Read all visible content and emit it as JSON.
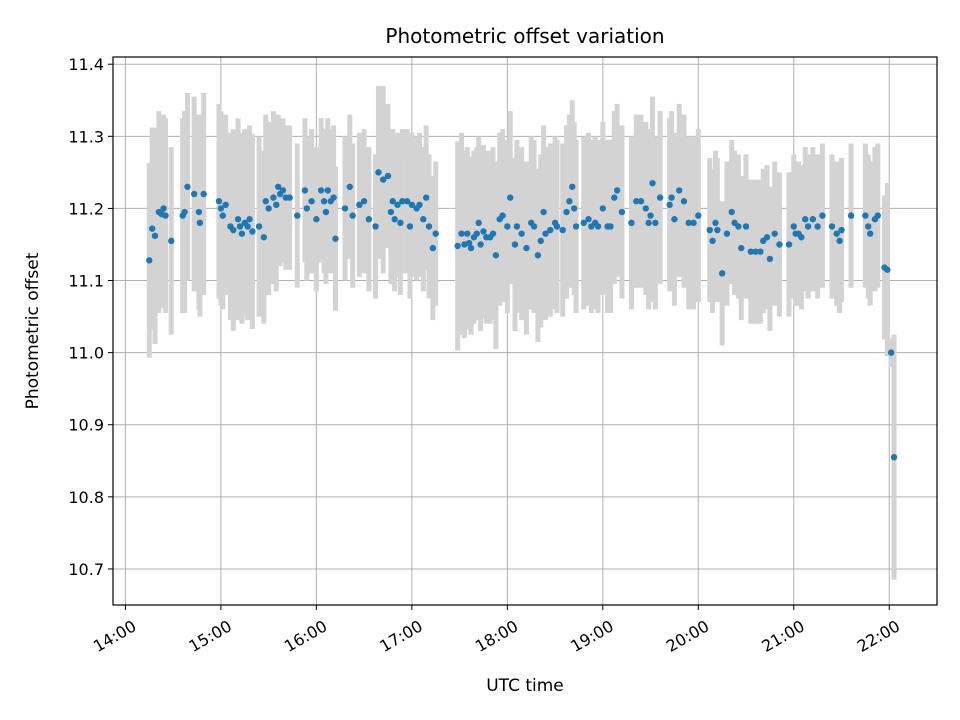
{
  "chart_data": {
    "type": "scatter",
    "title": "Photometric offset variation",
    "xlabel": "UTC time",
    "ylabel": "Photometric offset",
    "x_unit": "hours UTC",
    "xlim": [
      13.87,
      22.5
    ],
    "ylim": [
      10.65,
      11.41
    ],
    "x_ticks": [
      14,
      15,
      16,
      17,
      18,
      19,
      20,
      21,
      22
    ],
    "x_tick_labels": [
      "14:00",
      "15:00",
      "16:00",
      "17:00",
      "18:00",
      "19:00",
      "20:00",
      "21:00",
      "22:00"
    ],
    "y_ticks": [
      10.7,
      10.8,
      10.9,
      11.0,
      11.1,
      11.2,
      11.3,
      11.4
    ],
    "y_tick_labels": [
      "10.7",
      "10.8",
      "10.9",
      "11.0",
      "11.1",
      "11.2",
      "11.3",
      "11.4"
    ],
    "grid": true,
    "point_color": "#1f77b4",
    "errorbar_color": "#d3d3d3",
    "series": [
      {
        "values": [
          [
            14.25,
            11.128,
            0.135
          ],
          [
            14.28,
            11.172,
            0.14
          ],
          [
            14.31,
            11.162,
            0.15
          ],
          [
            14.35,
            11.195,
            0.14
          ],
          [
            14.38,
            11.192,
            0.13
          ],
          [
            14.4,
            11.2,
            0.13
          ],
          [
            14.42,
            11.19,
            0.135
          ],
          [
            14.48,
            11.155,
            0.13
          ],
          [
            14.6,
            11.19,
            0.135
          ],
          [
            14.62,
            11.195,
            0.14
          ],
          [
            14.65,
            11.23,
            0.13
          ],
          [
            14.72,
            11.22,
            0.135
          ],
          [
            14.77,
            11.195,
            0.135
          ],
          [
            14.78,
            11.18,
            0.13
          ],
          [
            14.82,
            11.22,
            0.14
          ],
          [
            14.98,
            11.21,
            0.135
          ],
          [
            15.0,
            11.2,
            0.135
          ],
          [
            15.02,
            11.19,
            0.13
          ],
          [
            15.05,
            11.205,
            0.125
          ],
          [
            15.1,
            11.175,
            0.13
          ],
          [
            15.13,
            11.17,
            0.14
          ],
          [
            15.18,
            11.185,
            0.14
          ],
          [
            15.2,
            11.175,
            0.13
          ],
          [
            15.22,
            11.165,
            0.125
          ],
          [
            15.25,
            11.18,
            0.13
          ],
          [
            15.28,
            11.175,
            0.13
          ],
          [
            15.3,
            11.185,
            0.13
          ],
          [
            15.33,
            11.168,
            0.135
          ],
          [
            15.4,
            11.175,
            0.125
          ],
          [
            15.45,
            11.16,
            0.12
          ],
          [
            15.47,
            11.21,
            0.12
          ],
          [
            15.5,
            11.2,
            0.12
          ],
          [
            15.55,
            11.215,
            0.12
          ],
          [
            15.58,
            11.205,
            0.12
          ],
          [
            15.6,
            11.23,
            0.1
          ],
          [
            15.62,
            11.22,
            0.1
          ],
          [
            15.65,
            11.225,
            0.1
          ],
          [
            15.68,
            11.215,
            0.1
          ],
          [
            15.72,
            11.215,
            0.1
          ],
          [
            15.8,
            11.19,
            0.1
          ],
          [
            15.88,
            11.225,
            0.1
          ],
          [
            15.9,
            11.2,
            0.1
          ],
          [
            15.95,
            11.21,
            0.1
          ],
          [
            16.0,
            11.185,
            0.1
          ],
          [
            16.05,
            11.225,
            0.1
          ],
          [
            16.08,
            11.21,
            0.1
          ],
          [
            16.1,
            11.195,
            0.1
          ],
          [
            16.12,
            11.225,
            0.1
          ],
          [
            16.15,
            11.21,
            0.1
          ],
          [
            16.18,
            11.215,
            0.1
          ],
          [
            16.2,
            11.158,
            0.1
          ],
          [
            16.3,
            11.2,
            0.1
          ],
          [
            16.35,
            11.23,
            0.1
          ],
          [
            16.38,
            11.19,
            0.1
          ],
          [
            16.45,
            11.205,
            0.1
          ],
          [
            16.5,
            11.21,
            0.1
          ],
          [
            16.55,
            11.185,
            0.1
          ],
          [
            16.62,
            11.175,
            0.1
          ],
          [
            16.65,
            11.25,
            0.12
          ],
          [
            16.7,
            11.24,
            0.13
          ],
          [
            16.75,
            11.245,
            0.1
          ],
          [
            16.78,
            11.195,
            0.1
          ],
          [
            16.8,
            11.21,
            0.1
          ],
          [
            16.82,
            11.185,
            0.1
          ],
          [
            16.85,
            11.205,
            0.1
          ],
          [
            16.88,
            11.18,
            0.1
          ],
          [
            16.9,
            11.21,
            0.1
          ],
          [
            16.95,
            11.21,
            0.1
          ],
          [
            16.98,
            11.175,
            0.1
          ],
          [
            17.0,
            11.205,
            0.1
          ],
          [
            17.05,
            11.2,
            0.1
          ],
          [
            17.08,
            11.205,
            0.1
          ],
          [
            17.12,
            11.185,
            0.1
          ],
          [
            17.15,
            11.215,
            0.1
          ],
          [
            17.18,
            11.175,
            0.1
          ],
          [
            17.22,
            11.145,
            0.1
          ],
          [
            17.25,
            11.165,
            0.1
          ],
          [
            17.48,
            11.148,
            0.145
          ],
          [
            17.52,
            11.165,
            0.14
          ],
          [
            17.55,
            11.15,
            0.13
          ],
          [
            17.58,
            11.165,
            0.12
          ],
          [
            17.6,
            11.152,
            0.12
          ],
          [
            17.62,
            11.145,
            0.12
          ],
          [
            17.65,
            11.16,
            0.12
          ],
          [
            17.68,
            11.165,
            0.12
          ],
          [
            17.7,
            11.18,
            0.12
          ],
          [
            17.72,
            11.15,
            0.12
          ],
          [
            17.75,
            11.168,
            0.12
          ],
          [
            17.78,
            11.16,
            0.12
          ],
          [
            17.82,
            11.16,
            0.12
          ],
          [
            17.85,
            11.165,
            0.12
          ],
          [
            17.88,
            11.135,
            0.13
          ],
          [
            17.92,
            11.185,
            0.12
          ],
          [
            17.95,
            11.19,
            0.12
          ],
          [
            18.0,
            11.175,
            0.12
          ],
          [
            18.03,
            11.215,
            0.12
          ],
          [
            18.08,
            11.15,
            0.12
          ],
          [
            18.1,
            11.175,
            0.12
          ],
          [
            18.15,
            11.165,
            0.12
          ],
          [
            18.2,
            11.145,
            0.12
          ],
          [
            18.25,
            11.18,
            0.12
          ],
          [
            18.28,
            11.175,
            0.12
          ],
          [
            18.32,
            11.135,
            0.12
          ],
          [
            18.35,
            11.155,
            0.12
          ],
          [
            18.38,
            11.195,
            0.12
          ],
          [
            18.4,
            11.165,
            0.12
          ],
          [
            18.45,
            11.17,
            0.12
          ],
          [
            18.5,
            11.18,
            0.12
          ],
          [
            18.52,
            11.175,
            0.12
          ],
          [
            18.58,
            11.17,
            0.12
          ],
          [
            18.62,
            11.195,
            0.12
          ],
          [
            18.65,
            11.21,
            0.12
          ],
          [
            18.68,
            11.23,
            0.12
          ],
          [
            18.7,
            11.2,
            0.12
          ],
          [
            18.72,
            11.175,
            0.12
          ],
          [
            18.8,
            11.18,
            0.12
          ],
          [
            18.85,
            11.185,
            0.12
          ],
          [
            18.88,
            11.175,
            0.12
          ],
          [
            18.92,
            11.18,
            0.12
          ],
          [
            18.95,
            11.175,
            0.12
          ],
          [
            19.0,
            11.2,
            0.12
          ],
          [
            19.05,
            11.175,
            0.12
          ],
          [
            19.08,
            11.175,
            0.12
          ],
          [
            19.12,
            11.215,
            0.12
          ],
          [
            19.15,
            11.225,
            0.12
          ],
          [
            19.2,
            11.195,
            0.12
          ],
          [
            19.3,
            11.18,
            0.12
          ],
          [
            19.35,
            11.21,
            0.12
          ],
          [
            19.4,
            11.21,
            0.12
          ],
          [
            19.45,
            11.2,
            0.12
          ],
          [
            19.48,
            11.18,
            0.12
          ],
          [
            19.5,
            11.19,
            0.12
          ],
          [
            19.52,
            11.235,
            0.12
          ],
          [
            19.55,
            11.18,
            0.12
          ],
          [
            19.6,
            11.215,
            0.12
          ],
          [
            19.7,
            11.205,
            0.12
          ],
          [
            19.72,
            11.215,
            0.12
          ],
          [
            19.75,
            11.185,
            0.12
          ],
          [
            19.8,
            11.225,
            0.12
          ],
          [
            19.85,
            11.21,
            0.12
          ],
          [
            19.9,
            11.18,
            0.12
          ],
          [
            19.95,
            11.18,
            0.12
          ],
          [
            20.0,
            11.19,
            0.12
          ],
          [
            20.12,
            11.17,
            0.1
          ],
          [
            20.15,
            11.155,
            0.1
          ],
          [
            20.18,
            11.18,
            0.1
          ],
          [
            20.2,
            11.17,
            0.1
          ],
          [
            20.25,
            11.11,
            0.1
          ],
          [
            20.3,
            11.165,
            0.1
          ],
          [
            20.35,
            11.195,
            0.1
          ],
          [
            20.38,
            11.18,
            0.1
          ],
          [
            20.42,
            11.175,
            0.1
          ],
          [
            20.45,
            11.145,
            0.1
          ],
          [
            20.5,
            11.175,
            0.1
          ],
          [
            20.55,
            11.14,
            0.1
          ],
          [
            20.6,
            11.14,
            0.1
          ],
          [
            20.65,
            11.14,
            0.1
          ],
          [
            20.68,
            11.155,
            0.1
          ],
          [
            20.72,
            11.16,
            0.1
          ],
          [
            20.75,
            11.13,
            0.1
          ],
          [
            20.8,
            11.165,
            0.1
          ],
          [
            20.85,
            11.15,
            0.1
          ],
          [
            20.95,
            11.15,
            0.1
          ],
          [
            21.0,
            11.175,
            0.1
          ],
          [
            21.02,
            11.165,
            0.1
          ],
          [
            21.05,
            11.165,
            0.1
          ],
          [
            21.08,
            11.16,
            0.1
          ],
          [
            21.12,
            11.185,
            0.1
          ],
          [
            21.15,
            11.175,
            0.1
          ],
          [
            21.2,
            11.185,
            0.1
          ],
          [
            21.25,
            11.175,
            0.1
          ],
          [
            21.3,
            11.19,
            0.1
          ],
          [
            21.4,
            11.175,
            0.1
          ],
          [
            21.45,
            11.165,
            0.1
          ],
          [
            21.48,
            11.155,
            0.1
          ],
          [
            21.5,
            11.17,
            0.1
          ],
          [
            21.6,
            11.19,
            0.1
          ],
          [
            21.75,
            11.19,
            0.1
          ],
          [
            21.78,
            11.175,
            0.1
          ],
          [
            21.8,
            11.165,
            0.1
          ],
          [
            21.85,
            11.185,
            0.1
          ],
          [
            21.88,
            11.19,
            0.1
          ],
          [
            21.95,
            11.118,
            0.1
          ],
          [
            21.98,
            11.115,
            0.12
          ],
          [
            22.02,
            11.0,
            0.02
          ],
          [
            22.05,
            10.855,
            0.17
          ]
        ]
      }
    ]
  }
}
